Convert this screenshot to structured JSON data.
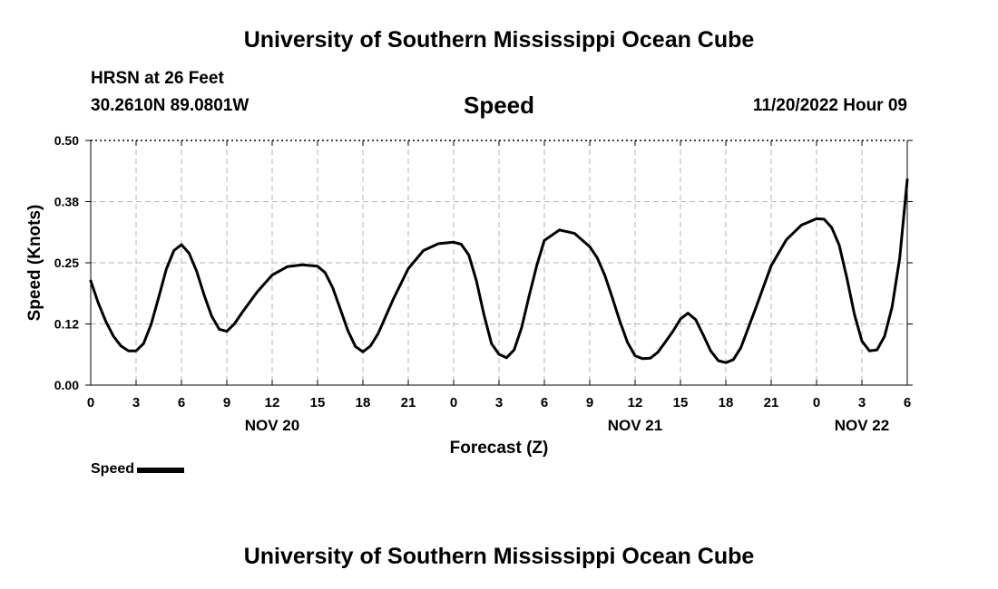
{
  "header": {
    "title": "University of Southern Mississippi Ocean Cube",
    "station": "HRSN at 26 Feet",
    "coords": "30.2610N  89.0801W",
    "timestamp": "11/20/2022 Hour 09"
  },
  "footer": {
    "title": "University of Southern Mississippi Ocean Cube"
  },
  "legend": {
    "label": "Speed",
    "color": "#000000"
  },
  "chart_data": {
    "type": "line",
    "title": "Speed",
    "xlabel": "Forecast (Z)",
    "ylabel": "Speed (Knots)",
    "xlim": [
      0,
      54
    ],
    "ylim": [
      0,
      0.5
    ],
    "yticks": [
      "0.00",
      "0.12",
      "0.25",
      "0.38",
      "0.50"
    ],
    "xtick_labels": [
      "0",
      "3",
      "6",
      "9",
      "12",
      "15",
      "18",
      "21",
      "0",
      "3",
      "6",
      "9",
      "12",
      "15",
      "18",
      "21",
      "0",
      "3",
      "6"
    ],
    "day_labels": [
      {
        "hour": 12,
        "label": "NOV 20"
      },
      {
        "hour": 36,
        "label": "NOV 21"
      },
      {
        "hour": 51,
        "label": "NOV 22"
      }
    ],
    "grid": true,
    "series": [
      {
        "name": "Speed",
        "color": "#000000",
        "x": [
          0,
          0.5,
          1,
          1.5,
          2,
          2.5,
          3,
          3.5,
          4,
          4.5,
          5,
          5.5,
          6,
          6.5,
          7,
          7.5,
          8,
          8.5,
          9,
          9.5,
          10,
          11,
          12,
          13,
          14,
          15,
          15.5,
          16,
          16.5,
          17,
          17.5,
          18,
          18.5,
          19,
          20,
          21,
          22,
          23,
          24,
          24.5,
          25,
          25.5,
          26,
          26.5,
          27,
          27.5,
          28,
          28.5,
          29,
          29.5,
          30,
          31,
          32,
          33,
          33.5,
          34,
          34.5,
          35,
          35.5,
          36,
          36.5,
          37,
          37.5,
          38,
          38.5,
          39,
          39.5,
          40,
          40.5,
          41,
          41.5,
          42,
          42.5,
          43,
          44,
          45,
          46,
          47,
          48,
          48.5,
          49,
          49.5,
          50,
          50.5,
          51,
          51.5,
          52,
          52.5,
          53,
          53.5,
          54
        ],
        "values": [
          0.213,
          0.168,
          0.13,
          0.1,
          0.08,
          0.07,
          0.07,
          0.085,
          0.125,
          0.18,
          0.237,
          0.275,
          0.287,
          0.27,
          0.233,
          0.184,
          0.141,
          0.114,
          0.11,
          0.125,
          0.148,
          0.19,
          0.225,
          0.242,
          0.246,
          0.243,
          0.23,
          0.199,
          0.156,
          0.112,
          0.079,
          0.068,
          0.08,
          0.105,
          0.175,
          0.238,
          0.275,
          0.289,
          0.292,
          0.288,
          0.266,
          0.214,
          0.145,
          0.085,
          0.063,
          0.056,
          0.072,
          0.118,
          0.183,
          0.245,
          0.296,
          0.317,
          0.31,
          0.283,
          0.26,
          0.224,
          0.178,
          0.13,
          0.087,
          0.06,
          0.054,
          0.055,
          0.067,
          0.088,
          0.11,
          0.135,
          0.147,
          0.134,
          0.103,
          0.07,
          0.05,
          0.046,
          0.052,
          0.077,
          0.159,
          0.244,
          0.297,
          0.327,
          0.34,
          0.339,
          0.322,
          0.286,
          0.22,
          0.145,
          0.09,
          0.07,
          0.072,
          0.1,
          0.16,
          0.26,
          0.42
        ]
      }
    ]
  }
}
